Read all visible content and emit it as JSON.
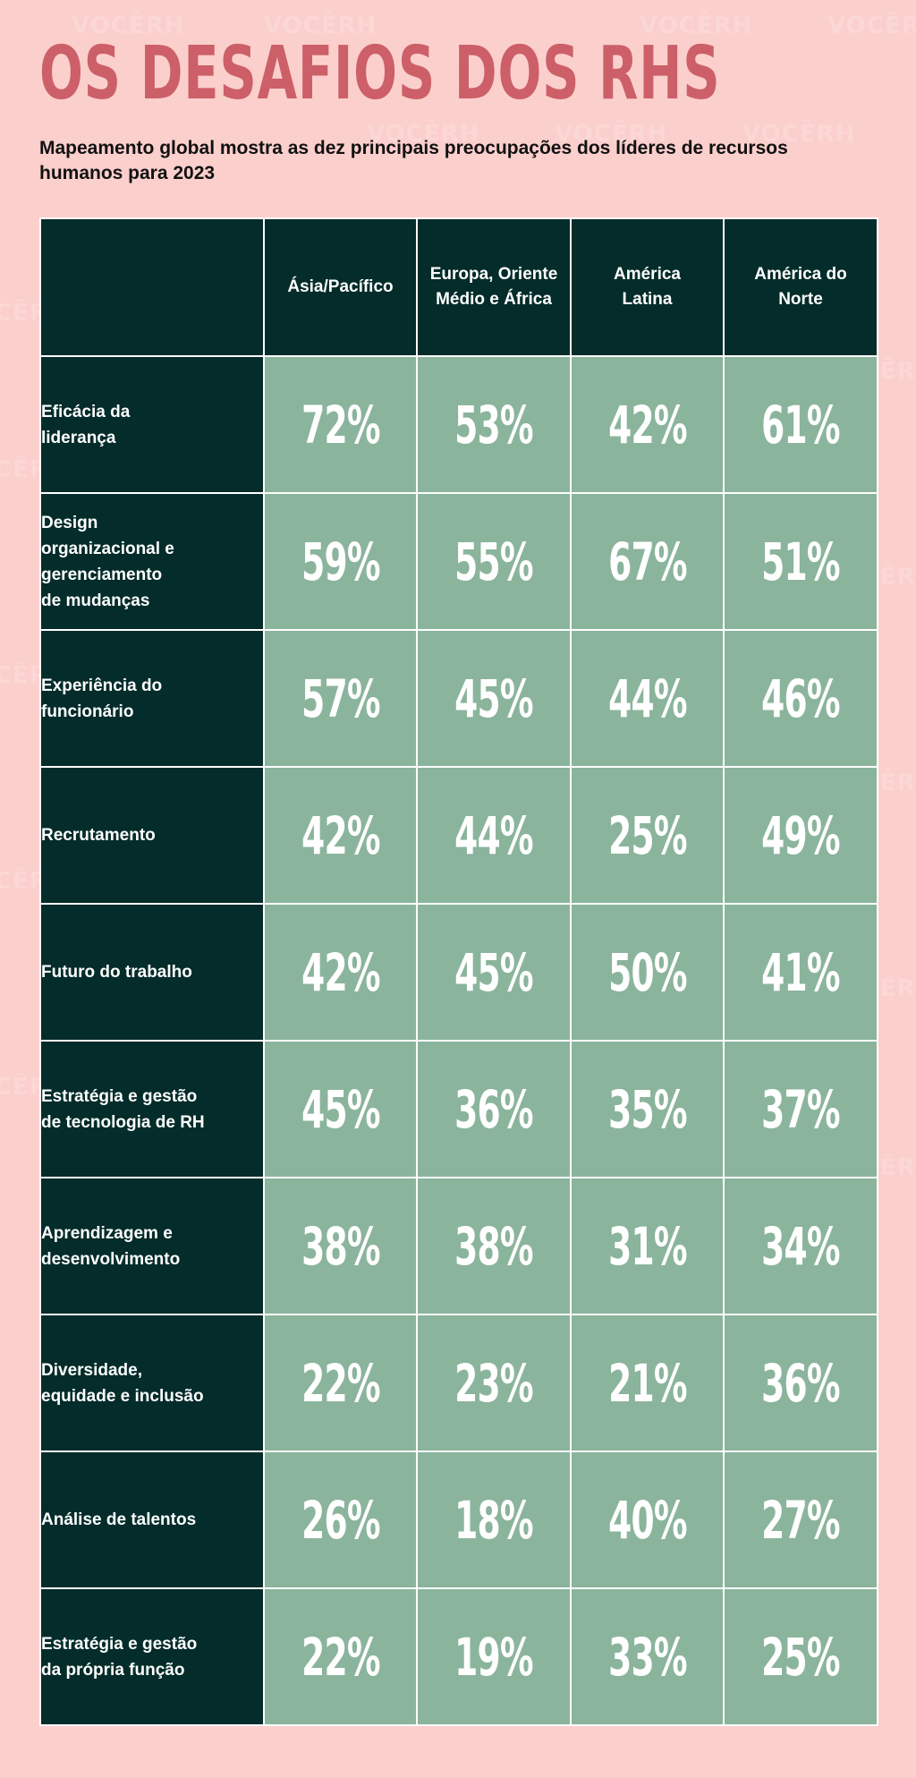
{
  "title": "OS DESAFIOS DOS RHS",
  "subtitle": "Mapeamento global mostra as dez principais preocupações dos líderes de recursos humanos para 2023",
  "watermark": "VOCÊRH",
  "colors": {
    "background": "#fbcfcc",
    "title": "#cc5f68",
    "dark": "#032c2a",
    "cell": "#8bb49c"
  },
  "chart_data": {
    "type": "table",
    "title": "OS DESAFIOS DOS RHS",
    "subtitle": "Mapeamento global mostra as dez principais preocupações dos líderes de recursos humanos para 2023",
    "columns": [
      "Ásia/Pacífico",
      "Europa, Oriente Médio e África",
      "América Latina",
      "América do Norte"
    ],
    "rows": [
      {
        "label": "Eficácia da liderança",
        "values": [
          "72%",
          "53%",
          "42%",
          "61%"
        ]
      },
      {
        "label": "Design organizacional e gerenciamento de mudanças",
        "values": [
          "59%",
          "55%",
          "67%",
          "51%"
        ]
      },
      {
        "label": "Experiência do funcionário",
        "values": [
          "57%",
          "45%",
          "44%",
          "46%"
        ]
      },
      {
        "label": "Recrutamento",
        "values": [
          "42%",
          "44%",
          "25%",
          "49%"
        ]
      },
      {
        "label": "Futuro do trabalho",
        "values": [
          "42%",
          "45%",
          "50%",
          "41%"
        ]
      },
      {
        "label": "Estratégia e gestão de tecnologia de RH",
        "values": [
          "45%",
          "36%",
          "35%",
          "37%"
        ]
      },
      {
        "label": "Aprendizagem e desenvolvimento",
        "values": [
          "38%",
          "38%",
          "31%",
          "34%"
        ]
      },
      {
        "label": "Diversidade, equidade e inclusão",
        "values": [
          "22%",
          "23%",
          "21%",
          "36%"
        ]
      },
      {
        "label": "Análise de talentos",
        "values": [
          "26%",
          "18%",
          "40%",
          "27%"
        ]
      },
      {
        "label": "Estratégia e gestão da própria função",
        "values": [
          "22%",
          "19%",
          "33%",
          "25%"
        ]
      }
    ]
  }
}
